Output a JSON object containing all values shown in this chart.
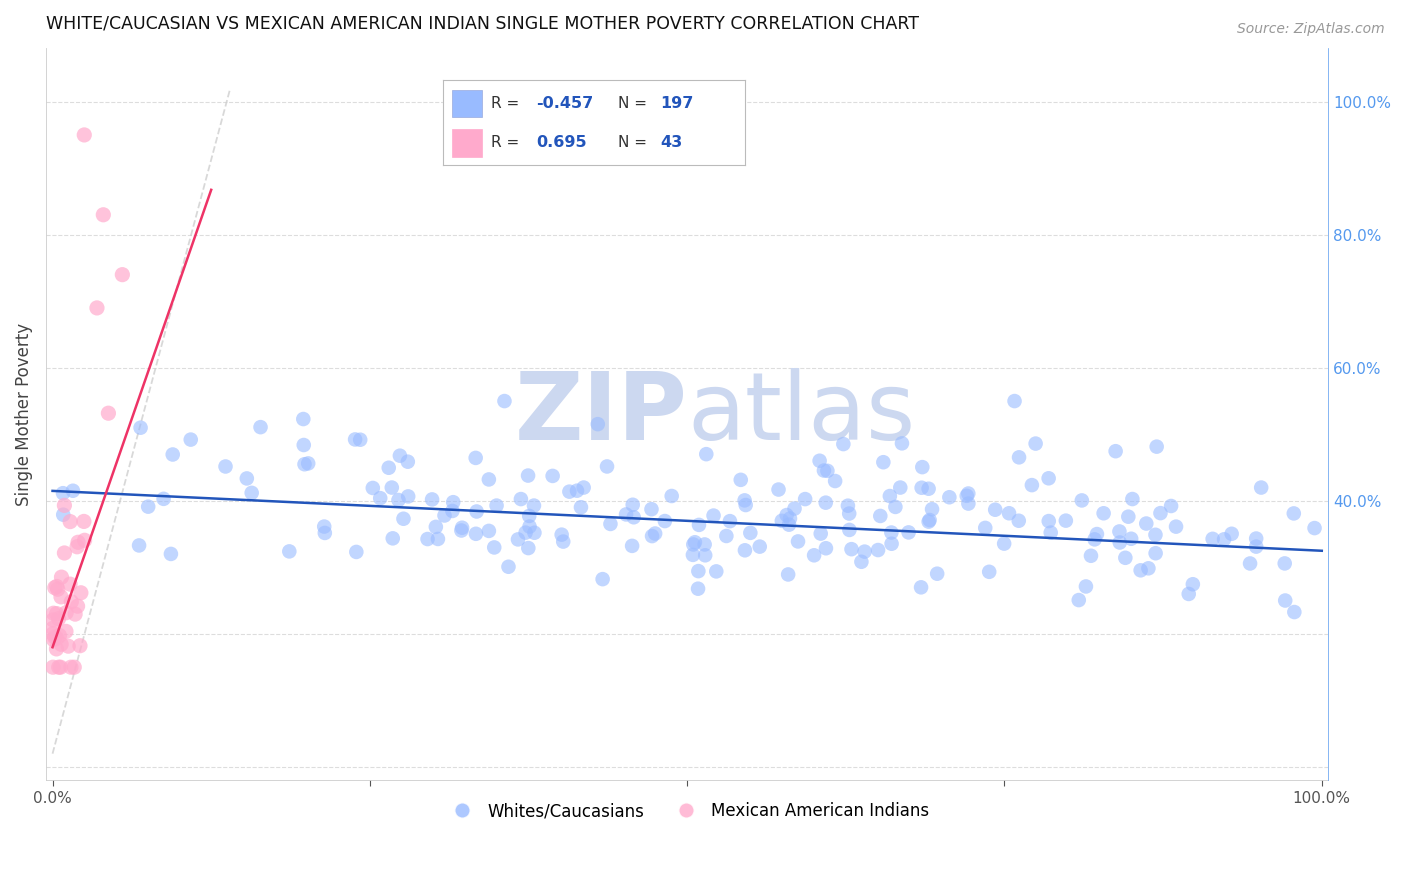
{
  "title": "WHITE/CAUCASIAN VS MEXICAN AMERICAN INDIAN SINGLE MOTHER POVERTY CORRELATION CHART",
  "source": "Source: ZipAtlas.com",
  "ylabel": "Single Mother Poverty",
  "blue_R": -0.457,
  "blue_N": 197,
  "pink_R": 0.695,
  "pink_N": 43,
  "blue_color": "#99bbff",
  "pink_color": "#ffaacc",
  "blue_line_color": "#2255bb",
  "pink_line_color": "#ee3366",
  "diag_color": "#cccccc",
  "watermark_zip_color": "#ccd8f0",
  "watermark_atlas_color": "#ccd8f0",
  "grid_color": "#dddddd",
  "right_axis_color": "#5599ee",
  "legend_label_blue": "Whites/Caucasians",
  "legend_label_pink": "Mexican American Indians",
  "blue_seed": 42,
  "pink_seed": 7,
  "blue_intercept": 0.415,
  "blue_slope": -0.09,
  "pink_intercept": 0.18,
  "pink_slope": 5.5,
  "xlim_min": -0.005,
  "xlim_max": 1.005,
  "ylim_min": -0.02,
  "ylim_max": 1.08
}
